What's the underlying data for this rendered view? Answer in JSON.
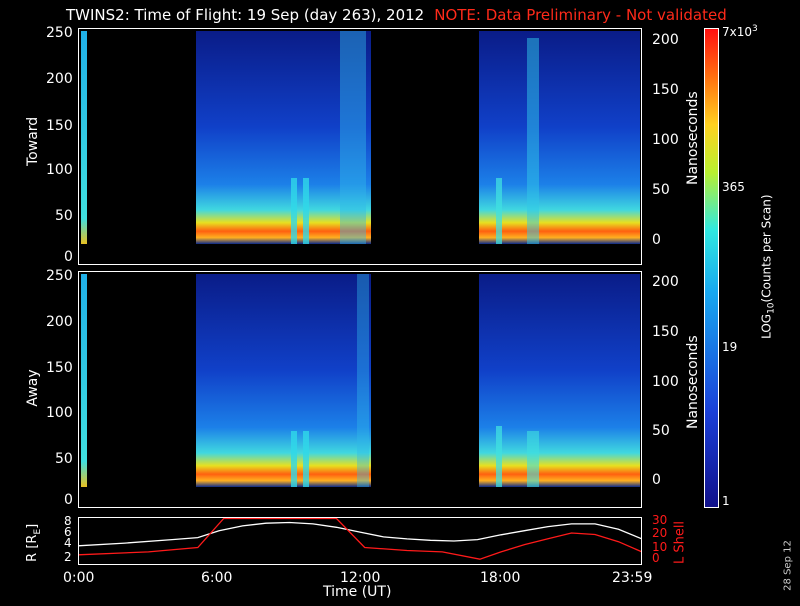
{
  "header": {
    "title": "TWINS2: Time of Flight: 19 Sep (day 263), 2012",
    "note": "NOTE: Data Preliminary - Not validated"
  },
  "colors": {
    "note": "#ff2a1a",
    "lshell": "#ff1a1a",
    "radius": "#ffffff"
  },
  "chart_data": [
    {
      "type": "heatmap",
      "panel": "Toward",
      "ylabel": "Toward",
      "ylabel_right": "Nanoseconds",
      "ylim": [
        0,
        255
      ],
      "yticks": [
        "0",
        "50",
        "100",
        "150",
        "200",
        "250"
      ],
      "yticks_right": [
        "0",
        "50",
        "100",
        "150",
        "200"
      ],
      "xlim_hours": [
        0,
        24
      ],
      "data_intervals_hours": [
        [
          0.1,
          0.3
        ],
        [
          5.0,
          12.3
        ],
        [
          16.9,
          23.99
        ]
      ],
      "intense_band_channel": [
        20,
        40
      ]
    },
    {
      "type": "heatmap",
      "panel": "Away",
      "ylabel": "Away",
      "ylabel_right": "Nanoseconds",
      "ylim": [
        0,
        255
      ],
      "yticks": [
        "0",
        "50",
        "100",
        "150",
        "200",
        "250"
      ],
      "yticks_right": [
        "0",
        "50",
        "100",
        "150",
        "200"
      ],
      "xlim_hours": [
        0,
        24
      ],
      "data_intervals_hours": [
        [
          0.1,
          0.3
        ],
        [
          5.0,
          12.3
        ],
        [
          16.9,
          23.99
        ]
      ],
      "intense_band_channel": [
        20,
        40
      ]
    },
    {
      "type": "line",
      "panel": "orbit",
      "ylabel_left": "R [R",
      "ylabel_left_sub": "E",
      "ylabel_left_end": "]",
      "ylabel_right": "L Shell",
      "yticks_left": [
        "2",
        "4",
        "6",
        "8"
      ],
      "yticks_right": [
        "0",
        "10",
        "20",
        "30"
      ],
      "xlabel": "Time (UT)",
      "xticks": [
        "0:00",
        "6:00",
        "12:00",
        "18:00",
        "23:59"
      ],
      "series": [
        {
          "name": "R [RE]",
          "x": [
            0,
            2,
            4,
            5.1,
            6,
            7,
            8,
            9,
            10,
            11,
            12,
            13,
            14,
            15,
            16,
            17,
            18,
            19,
            20,
            21,
            22,
            23,
            24
          ],
          "values": [
            3.8,
            4.2,
            4.7,
            5.0,
            6.0,
            6.7,
            7.1,
            7.2,
            7.0,
            6.5,
            5.8,
            5.1,
            4.8,
            4.6,
            4.5,
            4.7,
            5.4,
            6.0,
            6.6,
            7.0,
            7.0,
            6.2,
            4.8
          ]
        },
        {
          "name": "L Shell",
          "x": [
            0,
            3,
            5.1,
            6.2,
            11.0,
            12.2,
            14,
            15.5,
            17.1,
            18,
            19,
            20,
            21,
            22,
            23,
            24
          ],
          "values": [
            7,
            9,
            12,
            32,
            32,
            12,
            10,
            9,
            4,
            9,
            14,
            18,
            22,
            21,
            16,
            9
          ]
        }
      ]
    }
  ],
  "colorbar": {
    "label": "LOG",
    "label_sub": "10",
    "label_end": "(Counts per Scan)",
    "ticks": [
      "1",
      "19",
      "365"
    ],
    "top_label": "7x10",
    "top_sup": "3"
  },
  "footer": {
    "date_stamp": "28 Sep 12"
  }
}
